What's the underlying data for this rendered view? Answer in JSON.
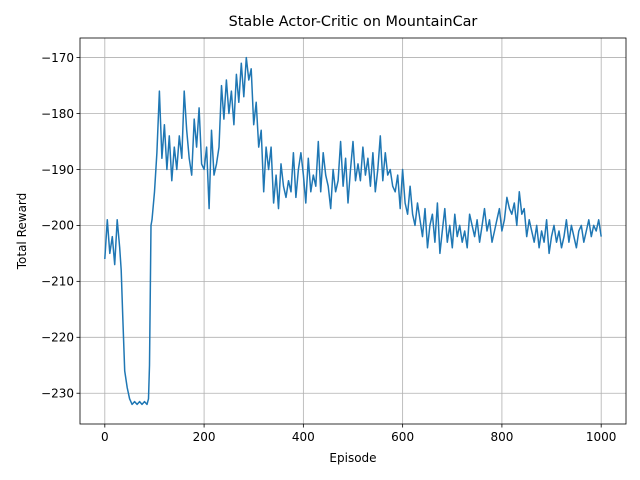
{
  "chart_data": {
    "type": "line",
    "title": "Stable Actor-Critic on MountainCar",
    "xlabel": "Episode",
    "ylabel": "Total Reward",
    "xlim": [
      -50,
      1050
    ],
    "ylim": [
      -235.5,
      -166.5
    ],
    "xticks": [
      0,
      200,
      400,
      600,
      800,
      1000
    ],
    "yticks": [
      -170,
      -180,
      -190,
      -200,
      -210,
      -220,
      -230
    ],
    "xtick_labels": [
      "0",
      "200",
      "400",
      "600",
      "800",
      "1000"
    ],
    "ytick_labels": [
      "−170",
      "−180",
      "−190",
      "−200",
      "−210",
      "−220",
      "−230"
    ],
    "grid": true,
    "line_color": "#1f77b4",
    "series": [
      {
        "x": [
          0,
          5,
          10,
          15,
          20,
          25,
          30,
          33,
          36,
          40,
          45,
          50,
          55,
          60,
          65,
          70,
          75,
          80,
          85,
          88,
          90,
          93,
          95,
          100,
          105,
          110,
          115,
          120,
          125,
          130,
          135,
          140,
          145,
          150,
          155,
          160,
          165,
          170,
          175,
          180,
          185,
          190,
          195,
          200,
          205,
          210,
          215,
          220,
          225,
          230,
          235,
          240,
          245,
          250,
          255,
          260,
          265,
          270,
          275,
          280,
          285,
          290,
          295,
          300,
          305,
          310,
          315,
          320,
          325,
          330,
          335,
          340,
          345,
          350,
          355,
          360,
          365,
          370,
          375,
          380,
          385,
          390,
          395,
          400,
          405,
          410,
          415,
          420,
          425,
          430,
          435,
          440,
          445,
          450,
          455,
          460,
          465,
          470,
          475,
          480,
          485,
          490,
          495,
          500,
          505,
          510,
          515,
          520,
          525,
          530,
          535,
          540,
          545,
          550,
          555,
          560,
          565,
          570,
          575,
          580,
          585,
          590,
          595,
          600,
          605,
          610,
          615,
          620,
          625,
          630,
          635,
          640,
          645,
          650,
          655,
          660,
          665,
          670,
          675,
          680,
          685,
          690,
          695,
          700,
          705,
          710,
          715,
          720,
          725,
          730,
          735,
          740,
          745,
          750,
          755,
          760,
          765,
          770,
          775,
          780,
          785,
          790,
          795,
          800,
          805,
          810,
          815,
          820,
          825,
          830,
          835,
          840,
          845,
          850,
          855,
          860,
          865,
          870,
          875,
          880,
          885,
          890,
          895,
          900,
          905,
          910,
          915,
          920,
          925,
          930,
          935,
          940,
          945,
          950,
          955,
          960,
          965,
          970,
          975,
          980,
          985,
          990,
          995,
          1000
        ],
        "y": [
          -206,
          -199,
          -205,
          -202,
          -207,
          -199,
          -204,
          -208,
          -216,
          -226,
          -229,
          -231,
          -232,
          -231.5,
          -232,
          -231.5,
          -232,
          -231.5,
          -232,
          -231,
          -225,
          -200,
          -199,
          -194,
          -187,
          -176,
          -188,
          -182,
          -190,
          -184,
          -192,
          -186,
          -190,
          -184,
          -188,
          -176,
          -183,
          -188,
          -191,
          -181,
          -186,
          -179,
          -189,
          -190,
          -186,
          -197,
          -183,
          -191,
          -189,
          -186,
          -175,
          -181,
          -174,
          -180,
          -176,
          -182,
          -173,
          -178,
          -171,
          -177,
          -170,
          -174,
          -172,
          -182,
          -178,
          -186,
          -183,
          -194,
          -186,
          -190,
          -186,
          -196,
          -191,
          -197,
          -189,
          -193,
          -195,
          -192,
          -194,
          -187,
          -195,
          -190,
          -187,
          -191,
          -196,
          -188,
          -194,
          -191,
          -193,
          -185,
          -194,
          -187,
          -191,
          -193,
          -197,
          -190,
          -194,
          -192,
          -185,
          -193,
          -188,
          -196,
          -190,
          -185,
          -192,
          -189,
          -192,
          -186,
          -191,
          -188,
          -193,
          -187,
          -194,
          -190,
          -184,
          -192,
          -187,
          -191,
          -190,
          -193,
          -194,
          -191,
          -197,
          -190,
          -196,
          -198,
          -193,
          -198,
          -200,
          -196,
          -199,
          -202,
          -197,
          -204,
          -200,
          -198,
          -203,
          -196,
          -205,
          -201,
          -197,
          -203,
          -200,
          -204,
          -198,
          -202,
          -200,
          -203,
          -201,
          -204,
          -198,
          -200,
          -202,
          -199,
          -203,
          -200,
          -197,
          -201,
          -199,
          -203,
          -201,
          -199,
          -197,
          -201,
          -199,
          -195,
          -197,
          -198,
          -196,
          -200,
          -194,
          -198,
          -197,
          -202,
          -199,
          -201,
          -203,
          -200,
          -204,
          -201,
          -203,
          -199,
          -205,
          -202,
          -200,
          -203,
          -201,
          -204,
          -202,
          -199,
          -203,
          -200,
          -202,
          -204,
          -201,
          -200,
          -203,
          -201,
          -199,
          -202,
          -200,
          -201,
          -199,
          -202
        ]
      }
    ]
  }
}
